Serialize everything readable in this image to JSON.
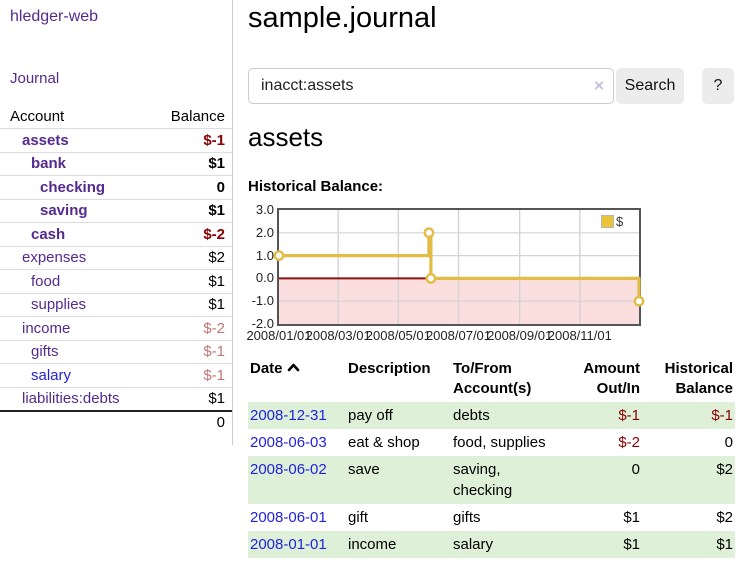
{
  "app": {
    "brand": "hledger-web",
    "nav": {
      "journal": "Journal"
    }
  },
  "sidebar": {
    "header": {
      "account": "Account",
      "balance": "Balance"
    },
    "accounts": [
      {
        "name": "assets",
        "depth": 1,
        "balance": "$-1"
      },
      {
        "name": "bank",
        "depth": 2,
        "balance": "$1"
      },
      {
        "name": "checking",
        "depth": 3,
        "balance": "0"
      },
      {
        "name": "saving",
        "depth": 3,
        "balance": "$1"
      },
      {
        "name": "cash",
        "depth": 2,
        "balance": "$-2"
      },
      {
        "name": "expenses",
        "depth": 1,
        "balance": "$2"
      },
      {
        "name": "food",
        "depth": 2,
        "balance": "$1"
      },
      {
        "name": "supplies",
        "depth": 2,
        "balance": "$1"
      },
      {
        "name": "income",
        "depth": 1,
        "balance": "$-2"
      },
      {
        "name": "gifts",
        "depth": 2,
        "balance": "$-1"
      },
      {
        "name": "salary",
        "depth": 2,
        "balance": "$-1"
      },
      {
        "name": "liabilities:debts",
        "depth": 1,
        "balance": "$1"
      }
    ],
    "total": "0"
  },
  "header": {
    "title": "sample.journal"
  },
  "search": {
    "value": "inacct:assets",
    "clear_icon": "×",
    "search_button": "Search",
    "help_button": "?"
  },
  "account_page": {
    "title": "assets",
    "chart_heading": "Historical Balance:"
  },
  "chart_data": {
    "type": "line",
    "step": true,
    "title": "Historical Balance",
    "x": [
      "2008-01-01",
      "2008-06-01",
      "2008-06-03",
      "2008-12-31"
    ],
    "series": [
      {
        "name": "$",
        "values": [
          1,
          2,
          0,
          -1
        ]
      }
    ],
    "xlim": [
      "2008-01-01",
      "2008-12-31"
    ],
    "ylim": [
      -2,
      3
    ],
    "grid": true,
    "legend_position": "top-right",
    "legend": [
      {
        "label": "$",
        "color": "#eac339"
      }
    ],
    "x_ticks": [
      {
        "label": "2008/01/01",
        "date": "2008-01-01"
      },
      {
        "label": "2008/03/01",
        "date": "2008-03-01"
      },
      {
        "label": "2008/05/01",
        "date": "2008-05-01"
      },
      {
        "label": "2008/07/01",
        "date": "2008-07-01"
      },
      {
        "label": "2008/09/01",
        "date": "2008-09-01"
      },
      {
        "label": "2008/11/01",
        "date": "2008-11-01"
      }
    ],
    "y_ticks": [
      {
        "label": "3.0",
        "value": 3
      },
      {
        "label": "2.0",
        "value": 2
      },
      {
        "label": "1.0",
        "value": 1
      },
      {
        "label": "0.0",
        "value": 0
      },
      {
        "label": "-1.0",
        "value": -1
      },
      {
        "label": "-2.0",
        "value": -2
      }
    ],
    "colors": {
      "line": "#e2bc45",
      "marker_fill": "#ffffff",
      "negative_region": "#fbdede",
      "zero_line": "#8f1212",
      "grid": "#d4d4d4",
      "border": "#555555"
    }
  },
  "register": {
    "headers": {
      "date": "Date",
      "description": "Description",
      "accounts": "To/From Account(s)",
      "amount": "Amount Out/In",
      "balance": "Historical Balance"
    },
    "rows": [
      {
        "date": "2008-12-31",
        "description": "pay off",
        "accounts": "debts",
        "amount": "$-1",
        "balance": "$-1"
      },
      {
        "date": "2008-06-03",
        "description": "eat & shop",
        "accounts": "food, supplies",
        "amount": "$-2",
        "balance": "0"
      },
      {
        "date": "2008-06-02",
        "description": "save",
        "accounts": "saving, checking",
        "amount": "0",
        "balance": "$2"
      },
      {
        "date": "2008-06-01",
        "description": "gift",
        "accounts": "gifts",
        "amount": "$1",
        "balance": "$2"
      },
      {
        "date": "2008-01-01",
        "description": "income",
        "accounts": "salary",
        "amount": "$1",
        "balance": "$1"
      }
    ]
  }
}
